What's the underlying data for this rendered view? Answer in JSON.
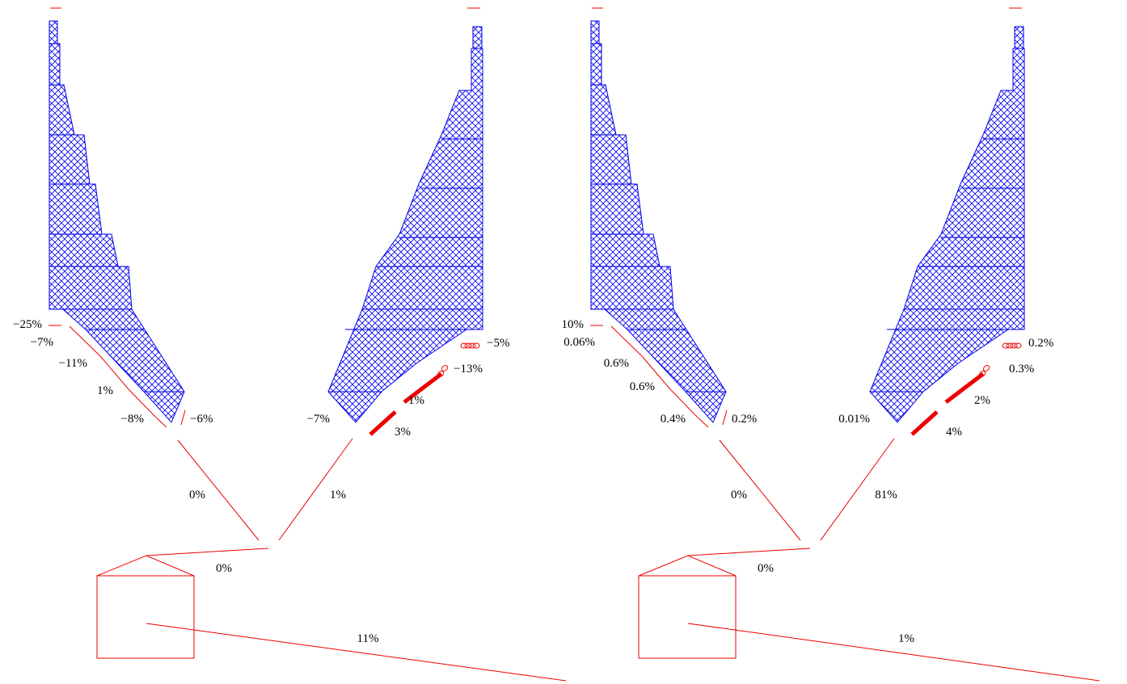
{
  "colors": {
    "structure": "#0000ee",
    "links": "#ee0000",
    "text": "#000000",
    "background": "#ffffff"
  },
  "panels": [
    {
      "labels": {
        "left_top": "−25%",
        "left_1": "−7%",
        "left_2": "−11%",
        "left_3": "1%",
        "left_4": "−8%",
        "left_tip": "−6%",
        "right_top": "−5%",
        "right_1": "−13%",
        "right_2": "1%",
        "right_3": "3%",
        "right_tip": "−7%",
        "branch_left": "0%",
        "branch_right": "1%",
        "base": "0%",
        "outflow": "11%"
      }
    },
    {
      "labels": {
        "left_top": "10%",
        "left_1": "0.06%",
        "left_2": "0.6%",
        "left_3": "0.6%",
        "left_4": "0.4%",
        "left_tip": "0.2%",
        "right_top": "0.2%",
        "right_1": "0.3%",
        "right_2": "2%",
        "right_3": "4%",
        "right_tip": "0.01%",
        "branch_left": "0%",
        "branch_right": "81%",
        "base": "0%",
        "outflow": "1%"
      }
    }
  ]
}
